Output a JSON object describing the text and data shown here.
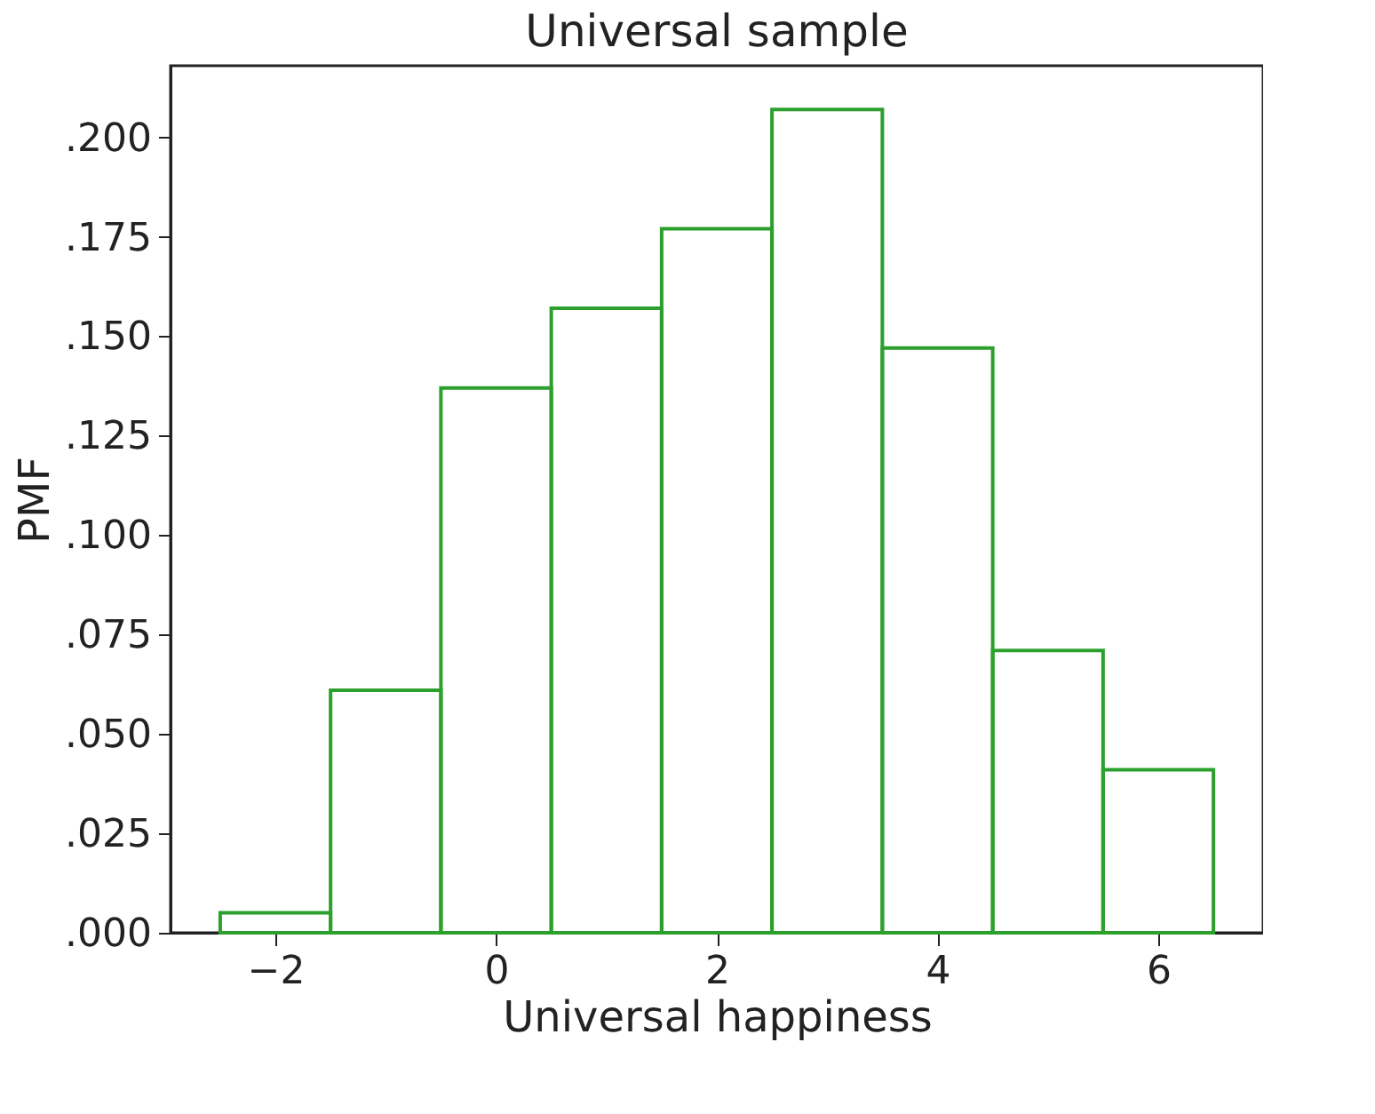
{
  "chart_data": {
    "type": "histogram",
    "title": "Universal sample",
    "xlabel": "Universal happiness",
    "ylabel": "PMF",
    "bins": [
      -2.5,
      -1.5,
      -0.5,
      0.5,
      1.5,
      2.5,
      3.5,
      4.5,
      5.5,
      6.5
    ],
    "values": [
      0.005,
      0.061,
      0.137,
      0.157,
      0.177,
      0.207,
      0.147,
      0.071,
      0.041
    ],
    "color": "#2ca02c",
    "xlim": [
      -2.95,
      6.95
    ],
    "xticks": [
      -2,
      0,
      2,
      4,
      6
    ],
    "ylim": [
      0,
      0.218
    ],
    "yticks": [
      {
        "value": 0,
        "label": ".000"
      },
      {
        "value": 0.025,
        "label": ".025"
      },
      {
        "value": 0.05,
        "label": ".050"
      },
      {
        "value": 0.075,
        "label": ".075"
      },
      {
        "value": 0.1,
        "label": ".100"
      },
      {
        "value": 0.125,
        "label": ".125"
      },
      {
        "value": 0.15,
        "label": ".150"
      },
      {
        "value": 0.175,
        "label": ".175"
      },
      {
        "value": 0.2,
        "label": ".200"
      }
    ],
    "grid": false
  }
}
